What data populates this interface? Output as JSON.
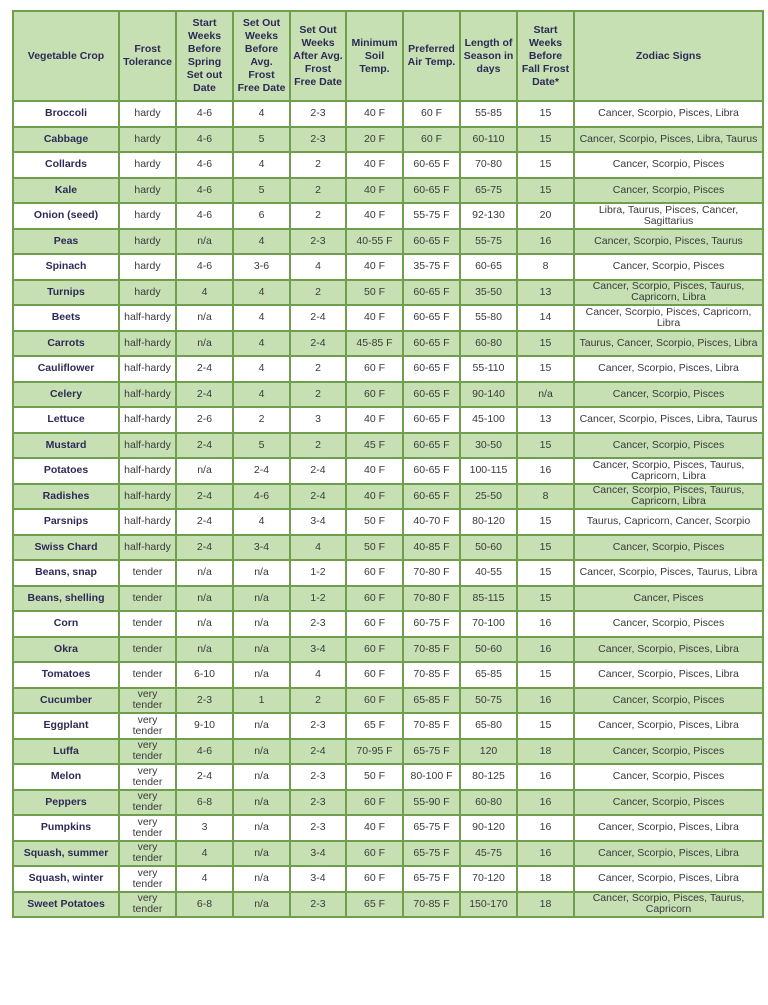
{
  "headers": [
    "Vegetable Crop",
    "Frost Tolerance",
    "Start Weeks Before Spring Set out Date",
    "Set Out Weeks Before Avg. Frost Free Date",
    "Set Out Weeks After Avg. Frost Free Date",
    "Minimum Soil Temp.",
    "Preferred Air Temp.",
    "Length of Season in days",
    "Start Weeks Before Fall Frost Date*",
    "Zodiac Signs"
  ],
  "rows": [
    [
      "Broccoli",
      "hardy",
      "4-6",
      "4",
      "2-3",
      "40 F",
      "60 F",
      "55-85",
      "15",
      "Cancer, Scorpio, Pisces, Libra"
    ],
    [
      "Cabbage",
      "hardy",
      "4-6",
      "5",
      "2-3",
      "20 F",
      "60 F",
      "60-110",
      "15",
      "Cancer, Scorpio, Pisces, Libra, Taurus"
    ],
    [
      "Collards",
      "hardy",
      "4-6",
      "4",
      "2",
      "40 F",
      "60-65 F",
      "70-80",
      "15",
      "Cancer, Scorpio, Pisces"
    ],
    [
      "Kale",
      "hardy",
      "4-6",
      "5",
      "2",
      "40 F",
      "60-65 F",
      "65-75",
      "15",
      "Cancer, Scorpio, Pisces"
    ],
    [
      "Onion (seed)",
      "hardy",
      "4-6",
      "6",
      "2",
      "40 F",
      "55-75 F",
      "92-130",
      "20",
      "Libra, Taurus, Pisces, Cancer, Sagittarius"
    ],
    [
      "Peas",
      "hardy",
      "n/a",
      "4",
      "2-3",
      "40-55 F",
      "60-65 F",
      "55-75",
      "16",
      "Cancer, Scorpio, Pisces, Taurus"
    ],
    [
      "Spinach",
      "hardy",
      "4-6",
      "3-6",
      "4",
      "40 F",
      "35-75 F",
      "60-65",
      "8",
      "Cancer, Scorpio, Pisces"
    ],
    [
      "Turnips",
      "hardy",
      "4",
      "4",
      "2",
      "50 F",
      "60-65 F",
      "35-50",
      "13",
      "Cancer, Scorpio, Pisces, Taurus, Capricorn, Libra"
    ],
    [
      "Beets",
      "half-hardy",
      "n/a",
      "4",
      "2-4",
      "40 F",
      "60-65 F",
      "55-80",
      "14",
      "Cancer, Scorpio, Pisces, Capricorn, Libra"
    ],
    [
      "Carrots",
      "half-hardy",
      "n/a",
      "4",
      "2-4",
      "45-85 F",
      "60-65 F",
      "60-80",
      "15",
      "Taurus, Cancer, Scorpio,  Pisces, Libra"
    ],
    [
      "Cauliflower",
      "half-hardy",
      "2-4",
      "4",
      "2",
      "60 F",
      "60-65 F",
      "55-110",
      "15",
      "Cancer, Scorpio, Pisces, Libra"
    ],
    [
      "Celery",
      "half-hardy",
      "2-4",
      "4",
      "2",
      "60 F",
      "60-65 F",
      "90-140",
      "n/a",
      "Cancer, Scorpio, Pisces"
    ],
    [
      "Lettuce",
      "half-hardy",
      "2-6",
      "2",
      "3",
      "40 F",
      "60-65 F",
      "45-100",
      "13",
      "Cancer, Scorpio, Pisces, Libra, Taurus"
    ],
    [
      "Mustard",
      "half-hardy",
      "2-4",
      "5",
      "2",
      "45 F",
      "60-65 F",
      "30-50",
      "15",
      "Cancer, Scorpio, Pisces"
    ],
    [
      "Potatoes",
      "half-hardy",
      "n/a",
      "2-4",
      "2-4",
      "40 F",
      "60-65 F",
      "100-115",
      "16",
      "Cancer, Scorpio, Pisces, Taurus, Capricorn, Libra"
    ],
    [
      "Radishes",
      "half-hardy",
      "2-4",
      "4-6",
      "2-4",
      "40 F",
      "60-65 F",
      "25-50",
      "8",
      "Cancer, Scorpio, Pisces, Taurus, Capricorn, Libra"
    ],
    [
      "Parsnips",
      "half-hardy",
      "2-4",
      "4",
      "3-4",
      "50 F",
      "40-70 F",
      "80-120",
      "15",
      "Taurus, Capricorn, Cancer, Scorpio"
    ],
    [
      "Swiss Chard",
      "half-hardy",
      "2-4",
      "3-4",
      "4",
      "50 F",
      "40-85 F",
      "50-60",
      "15",
      "Cancer, Scorpio, Pisces"
    ],
    [
      "Beans, snap",
      "tender",
      "n/a",
      "n/a",
      "1-2",
      "60 F",
      "70-80 F",
      "40-55",
      "15",
      "Cancer, Scorpio, Pisces, Taurus,  Libra"
    ],
    [
      "Beans, shelling",
      "tender",
      "n/a",
      "n/a",
      "1-2",
      "60 F",
      "70-80 F",
      "85-115",
      "15",
      "Cancer, Pisces"
    ],
    [
      "Corn",
      "tender",
      "n/a",
      "n/a",
      "2-3",
      "60 F",
      "60-75 F",
      "70-100",
      "16",
      "Cancer, Scorpio, Pisces"
    ],
    [
      "Okra",
      "tender",
      "n/a",
      "n/a",
      "3-4",
      "60 F",
      "70-85 F",
      "50-60",
      "16",
      "Cancer, Scorpio, Pisces, Libra"
    ],
    [
      "Tomatoes",
      "tender",
      "6-10",
      "n/a",
      "4",
      "60 F",
      "70-85 F",
      "65-85",
      "15",
      "Cancer, Scorpio, Pisces, Libra"
    ],
    [
      "Cucumber",
      "very tender",
      "2-3",
      "1",
      "2",
      "60 F",
      "65-85 F",
      "50-75",
      "16",
      "Cancer, Scorpio, Pisces"
    ],
    [
      "Eggplant",
      "very tender",
      "9-10",
      "n/a",
      "2-3",
      "65 F",
      "70-85 F",
      "65-80",
      "15",
      "Cancer, Scorpio, Pisces, Libra"
    ],
    [
      "Luffa",
      "very tender",
      "4-6",
      "n/a",
      "2-4",
      "70-95 F",
      "65-75 F",
      "120",
      "18",
      "Cancer, Scorpio, Pisces"
    ],
    [
      "Melon",
      "very tender",
      "2-4",
      "n/a",
      "2-3",
      "50 F",
      "80-100 F",
      "80-125",
      "16",
      "Cancer, Scorpio, Pisces"
    ],
    [
      "Peppers",
      "very tender",
      "6-8",
      "n/a",
      "2-3",
      "60 F",
      "55-90 F",
      "60-80",
      "16",
      "Cancer, Scorpio, Pisces"
    ],
    [
      "Pumpkins",
      "very tender",
      "3",
      "n/a",
      "2-3",
      "40 F",
      "65-75 F",
      "90-120",
      "16",
      "Cancer, Scorpio, Pisces, Libra"
    ],
    [
      "Squash, summer",
      "very tender",
      "4",
      "n/a",
      "3-4",
      "60 F",
      "65-75 F",
      "45-75",
      "16",
      "Cancer, Scorpio, Pisces, Libra"
    ],
    [
      "Squash, winter",
      "very tender",
      "4",
      "n/a",
      "3-4",
      "60 F",
      "65-75 F",
      "70-120",
      "18",
      "Cancer, Scorpio, Pisces, Libra"
    ],
    [
      "Sweet Potatoes",
      "very tender",
      "6-8",
      "n/a",
      "2-3",
      "65 F",
      "70-85 F",
      "150-170",
      "18",
      "Cancer, Scorpio, Pisces, Taurus, Capricorn"
    ]
  ],
  "colors": {
    "header_bg": "#c6e0b4",
    "border": "#6f9e4c",
    "crop_text": "#2e2a55"
  }
}
